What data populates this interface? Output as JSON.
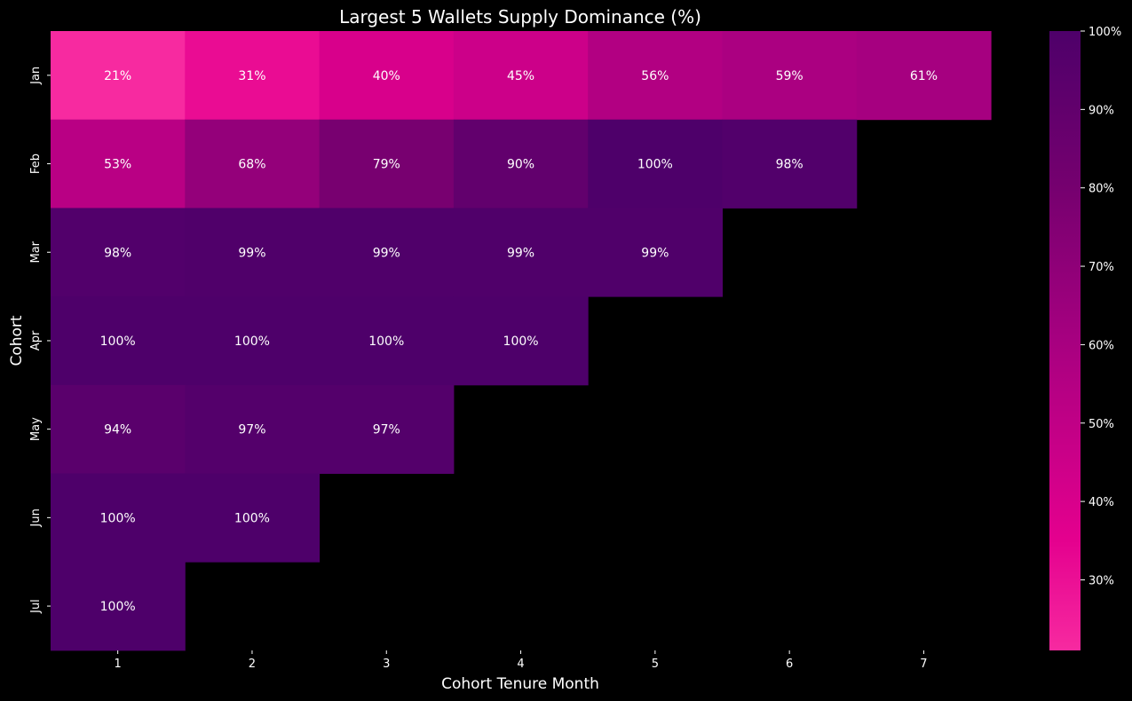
{
  "chart_data": {
    "type": "heatmap",
    "title": "Largest 5 Wallets Supply Dominance (%)",
    "xlabel": "Cohort Tenure Month",
    "ylabel": "Cohort",
    "x_categories": [
      "1",
      "2",
      "3",
      "4",
      "5",
      "6",
      "7"
    ],
    "y_categories": [
      "Jan",
      "Feb",
      "Mar",
      "Apr",
      "May",
      "Jun",
      "Jul"
    ],
    "values": [
      [
        21,
        31,
        40,
        45,
        56,
        59,
        61
      ],
      [
        53,
        68,
        79,
        90,
        100,
        98,
        null
      ],
      [
        98,
        99,
        99,
        99,
        99,
        null,
        null
      ],
      [
        100,
        100,
        100,
        100,
        null,
        null,
        null
      ],
      [
        94,
        97,
        97,
        null,
        null,
        null,
        null
      ],
      [
        100,
        100,
        null,
        null,
        null,
        null,
        null
      ],
      [
        100,
        null,
        null,
        null,
        null,
        null,
        null
      ]
    ],
    "value_suffix": "%",
    "colorbar": {
      "range": [
        21,
        100
      ],
      "ticks": [
        30,
        40,
        50,
        60,
        70,
        80,
        90,
        100
      ],
      "tick_suffix": "%",
      "color_low": "#F72AA0",
      "color_mid": "#E4008E",
      "color_high": "#4E006A"
    },
    "background": "#000000"
  }
}
